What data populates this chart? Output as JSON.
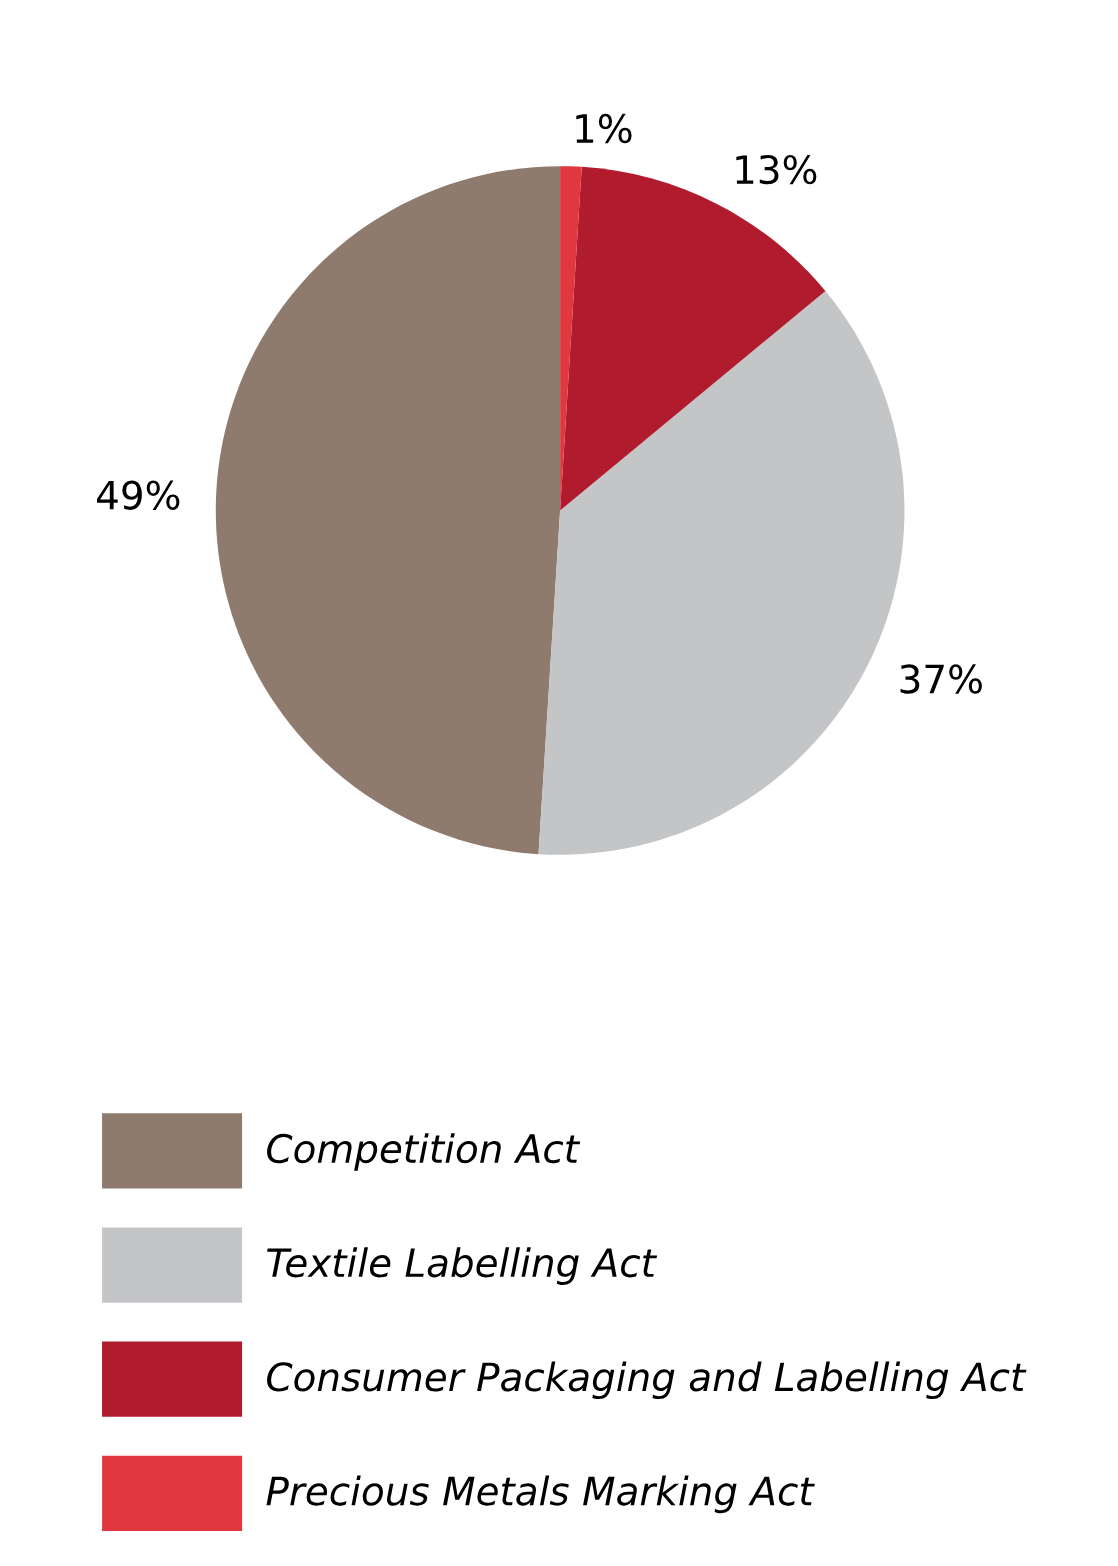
{
  "chart_data": {
    "type": "pie",
    "categories": [
      "Competition Act",
      "Textile Labelling Act",
      "Consumer Packaging and Labelling Act",
      "Precious Metals Marking Act"
    ],
    "values": [
      49,
      37,
      13,
      1
    ],
    "colors": [
      "#8f7a6e",
      "#c4c5c7",
      "#b01c2e",
      "#e0383e"
    ],
    "value_labels": [
      "49%",
      "37%",
      "13%",
      "1%"
    ],
    "legend": "bottom"
  }
}
